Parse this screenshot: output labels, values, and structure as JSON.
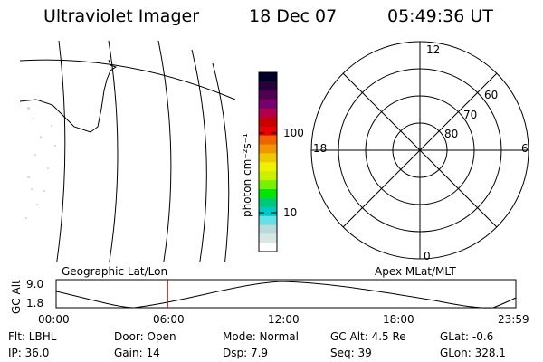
{
  "header": {
    "instrument": "Ultraviolet Imager",
    "date": "18 Dec 07",
    "time": "05:49:36 UT"
  },
  "colorbar": {
    "unit_label": "photon cm⁻²s⁻¹",
    "ticks": [
      "100",
      "10"
    ],
    "colors": [
      "#ffffff",
      "#d9e6e6",
      "#bcd9d9",
      "#66e0e6",
      "#00c8c8",
      "#00c878",
      "#00e600",
      "#78f000",
      "#c8f000",
      "#f0f000",
      "#f0c800",
      "#f09600",
      "#f06400",
      "#e60000",
      "#c80000",
      "#b4004b",
      "#78006e",
      "#500050",
      "#28003c",
      "#000028"
    ]
  },
  "polar": {
    "mlt_labels": {
      "top": "12",
      "left": "18",
      "right": "6",
      "bottom": "0"
    },
    "lat_labels": [
      "60",
      "70",
      "80"
    ]
  },
  "panel_labels": {
    "geo": "Geographic Lat/Lon",
    "apex": "Apex  MLat/MLT"
  },
  "timeline": {
    "ylabel": "GC Alt",
    "y_ticks": [
      "9.0",
      "1.8"
    ],
    "x_ticks": [
      "00:00",
      "06:00",
      "12:00",
      "18:00",
      "23:59"
    ],
    "current_time_fraction": 0.2428
  },
  "status": {
    "flt": "Flt: LBHL",
    "door": "Door: Open",
    "mode": "Mode: Normal",
    "gcalt": "GC Alt: 4.5 Re",
    "glat": "GLat:  -0.6",
    "ip": "IP: 36.0",
    "gain": "Gain: 14",
    "dsp": "Dsp:     7.9",
    "seq": "Seq: 39",
    "glon": "GLon: 328.1"
  }
}
